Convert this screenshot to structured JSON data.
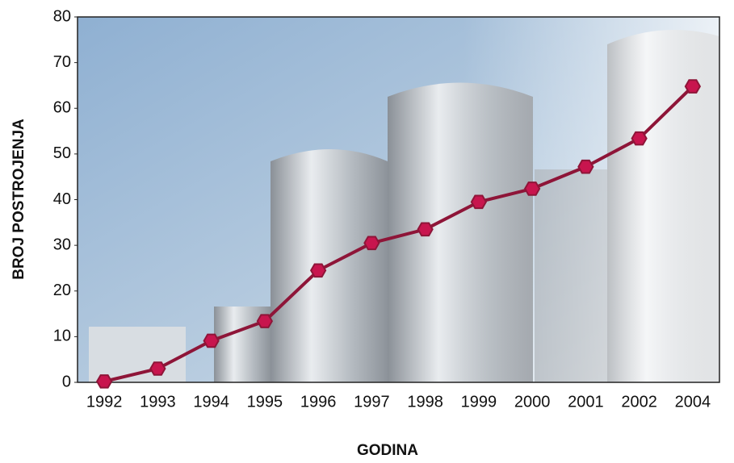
{
  "chart_data": {
    "type": "line",
    "x_label": "GODINA",
    "y_label": "BROJ POSTROJENJA",
    "categories": [
      "1992",
      "1993",
      "1994",
      "1995",
      "1996",
      "1997",
      "1998",
      "1999",
      "2000",
      "2001",
      "2002",
      "2004"
    ],
    "values": [
      0.2,
      3.0,
      9.1,
      13.4,
      24.5,
      30.5,
      33.5,
      39.5,
      42.4,
      47.2,
      53.4,
      64.8
    ],
    "color": "#8e1538",
    "marker_color": "#c8154e",
    "ylim": [
      0,
      80
    ],
    "yticks": [
      0,
      10,
      20,
      30,
      40,
      50,
      60,
      70,
      80
    ]
  }
}
